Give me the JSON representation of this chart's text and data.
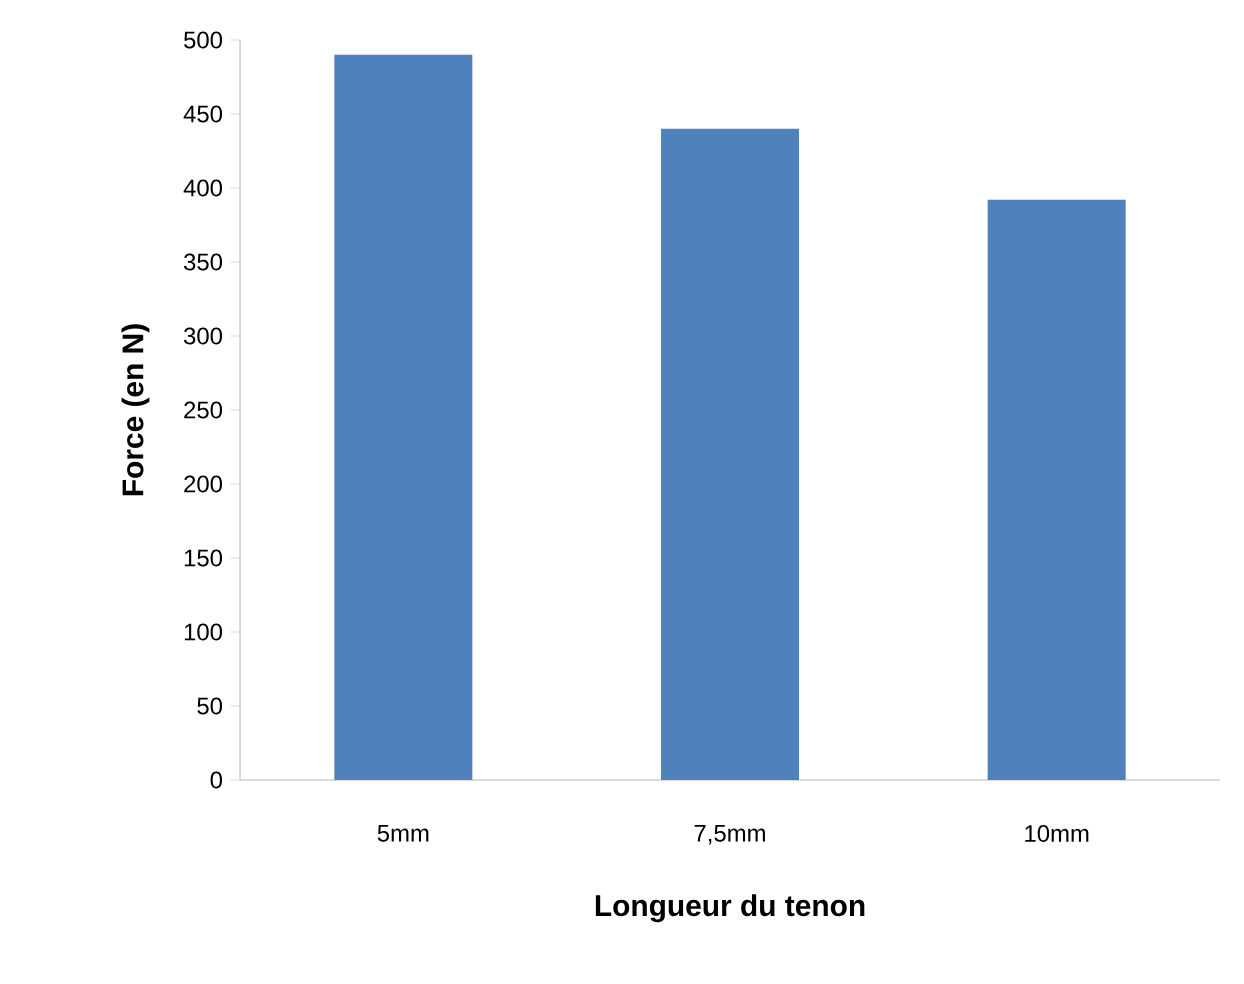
{
  "chart_data": {
    "type": "bar",
    "xlabel": "Longueur du tenon",
    "ylabel": "Force (en N)",
    "categories": [
      "5mm",
      "7,5mm",
      "10mm"
    ],
    "values": [
      490,
      440,
      392
    ],
    "color": "#4f81bd",
    "ylim": [
      0,
      500
    ],
    "yticks": [
      0,
      50,
      100,
      150,
      200,
      250,
      300,
      350,
      400,
      450,
      500
    ]
  }
}
